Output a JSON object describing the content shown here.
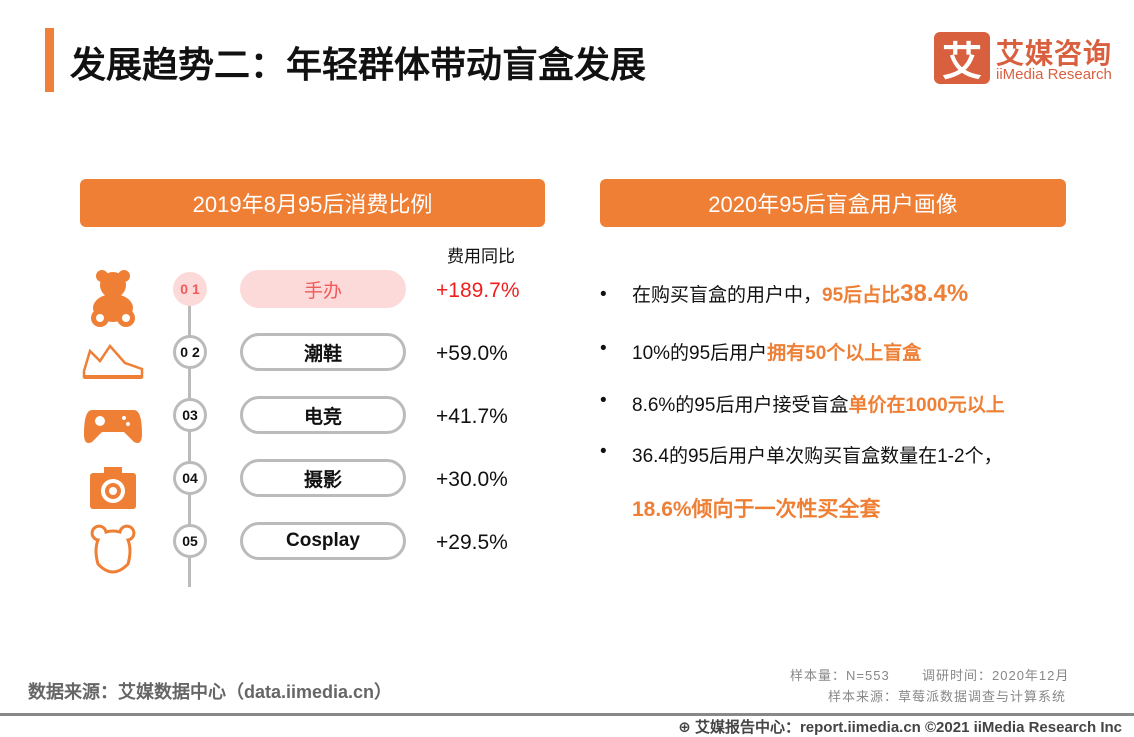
{
  "title": "发展趋势二：年轻群体带动盲盒发展",
  "logo": {
    "mark": "艾",
    "cn": "艾媒咨询",
    "en": "iiMedia Research"
  },
  "left": {
    "header": "2019年8月95后消费比例",
    "column_header": "费用同比",
    "items": [
      {
        "num": "0 1",
        "label": "手办",
        "value": "+189.7%",
        "icon": "teddy-bear-icon"
      },
      {
        "num": "0 2",
        "label": "潮鞋",
        "value": "+59.0%",
        "icon": "sneaker-icon"
      },
      {
        "num": "03",
        "label": "电竞",
        "value": "+41.7%",
        "icon": "gamepad-icon"
      },
      {
        "num": "04",
        "label": "摄影",
        "value": "+30.0%",
        "icon": "camera-icon"
      },
      {
        "num": "05",
        "label": "Cosplay",
        "value": "+29.5%",
        "icon": "bear-head-icon"
      }
    ]
  },
  "right": {
    "header": "2020年95后盲盒用户画像",
    "b1": {
      "a": "在购买盲盒的用户中，",
      "b": "95后占比",
      "c": "38.4%"
    },
    "b2": {
      "a": "10%的95后用户",
      "b": "拥有50个以上盲盒"
    },
    "b3": {
      "a": "8.6%的95后用户接受盲盒",
      "b": "单价在1000元以上"
    },
    "b4": {
      "a": "36.4的95后用户单次购买盲盒数量在1-2个，",
      "b": "18.6%倾向于一次性买全套"
    }
  },
  "source": "数据来源：艾媒数据中心（data.iimedia.cn）",
  "sample": "样本量：N=553",
  "survey_time": "调研时间：2020年12月",
  "sample_source": "样本来源：草莓派数据调查与计算系统",
  "footer": "艾媒报告中心：report.iimedia.cn  ©2021  iiMedia Research  Inc",
  "colors": {
    "accent": "#ee7f35",
    "highlight": "#f01e1e",
    "logo": "#d9603f"
  }
}
